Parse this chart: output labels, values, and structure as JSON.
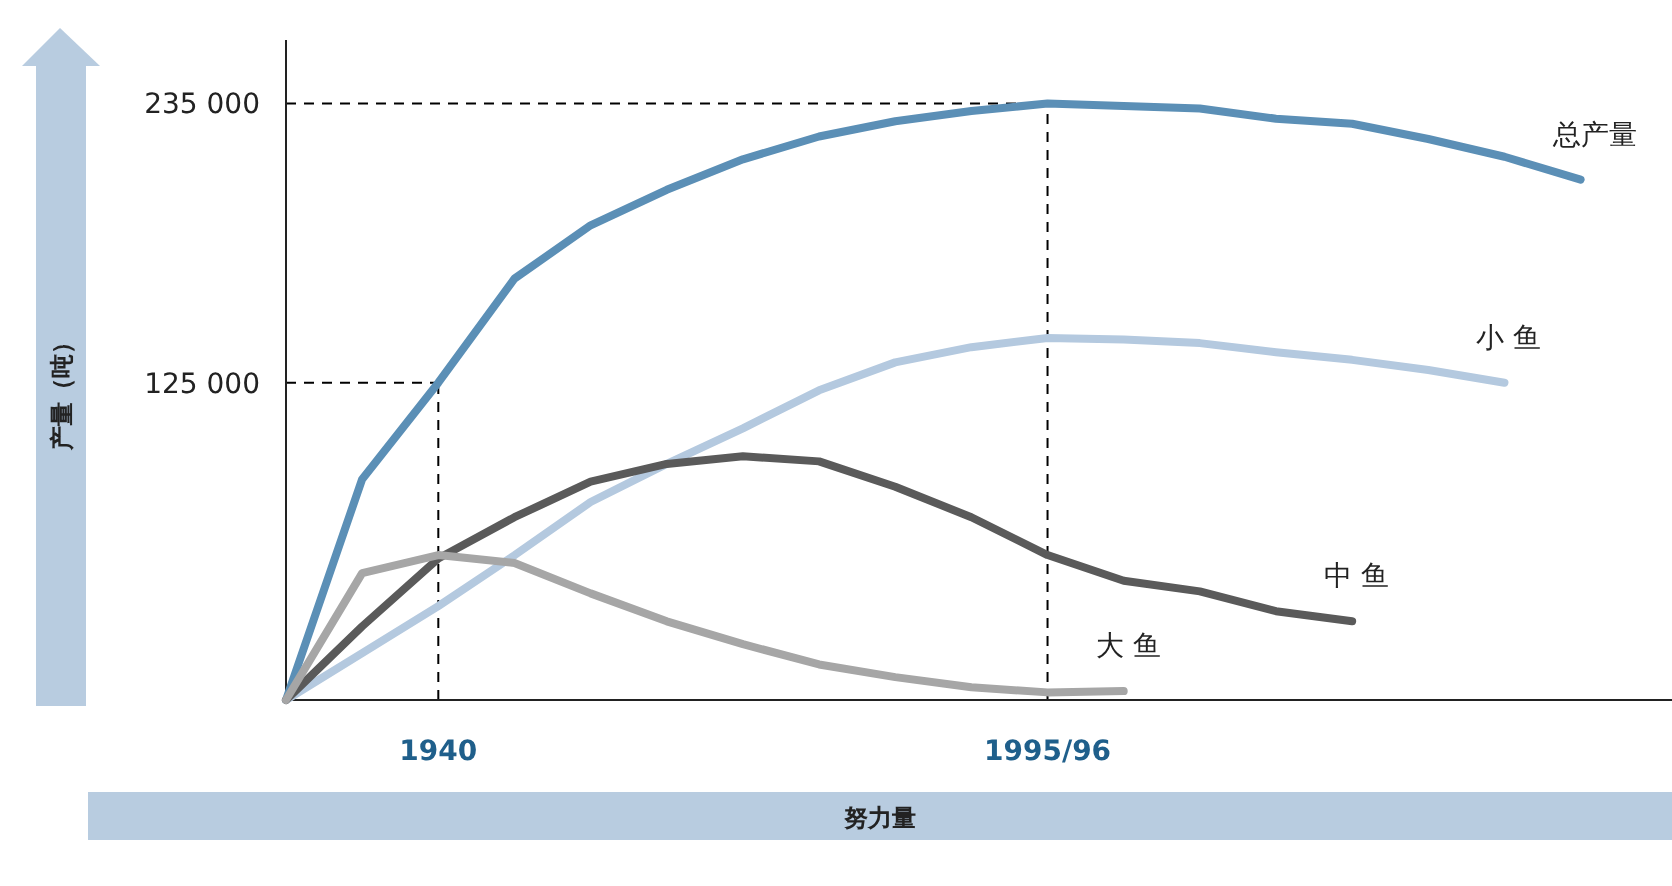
{
  "chart_data": {
    "type": "line",
    "xlabel": "努力量",
    "ylabel": "产量（吨）",
    "ylim": [
      0,
      260000
    ],
    "categories": [
      null,
      null,
      "1940",
      null,
      null,
      null,
      null,
      null,
      null,
      null,
      "1995/96",
      null,
      null,
      null,
      null,
      null,
      null,
      null
    ],
    "yticks": [
      {
        "value": 125000,
        "label": "125 000"
      },
      {
        "value": 235000,
        "label": "235 000"
      }
    ],
    "grid": false,
    "legend": false,
    "marker": "none",
    "line_style": "solid",
    "ref_lines": [
      {
        "axis": "y",
        "value": 235000,
        "line_style": "dashed",
        "color": "#000000"
      },
      {
        "axis": "y",
        "value": 125000,
        "line_style": "dashed",
        "color": "#000000"
      },
      {
        "axis": "x",
        "value": "1995/96",
        "line_style": "dashed",
        "color": "#000000"
      },
      {
        "axis": "x",
        "value": "1940",
        "line_style": "dashed",
        "color": "#000000"
      }
    ],
    "series": [
      {
        "name": "总产量",
        "color": "#5b8fb6",
        "values": [
          0,
          87000,
          125000,
          166000,
          187000,
          201000,
          213000,
          222000,
          228000,
          232000,
          235000,
          234000,
          233000,
          229000,
          227000,
          221000,
          214000,
          205000
        ]
      },
      {
        "name": "小 鱼",
        "color": "#b4c9df",
        "values": [
          0,
          18500,
          37000,
          57000,
          78000,
          93000,
          107000,
          122000,
          133000,
          139000,
          142600,
          142000,
          140600,
          137000,
          134000,
          130000,
          125000,
          null
        ]
      },
      {
        "name": "中 鱼",
        "color": "#5a5a5a",
        "values": [
          0,
          29000,
          55700,
          72000,
          86000,
          93000,
          96000,
          94000,
          84000,
          72000,
          57100,
          47000,
          42800,
          35000,
          31000,
          null,
          null,
          null
        ]
      },
      {
        "name": "大 鱼",
        "color": "#a6a6a6",
        "values": [
          0,
          50000,
          57100,
          54000,
          42000,
          31000,
          22000,
          14000,
          9000,
          5000,
          3000,
          3500,
          null,
          null,
          null,
          null,
          null,
          null
        ]
      }
    ]
  }
}
